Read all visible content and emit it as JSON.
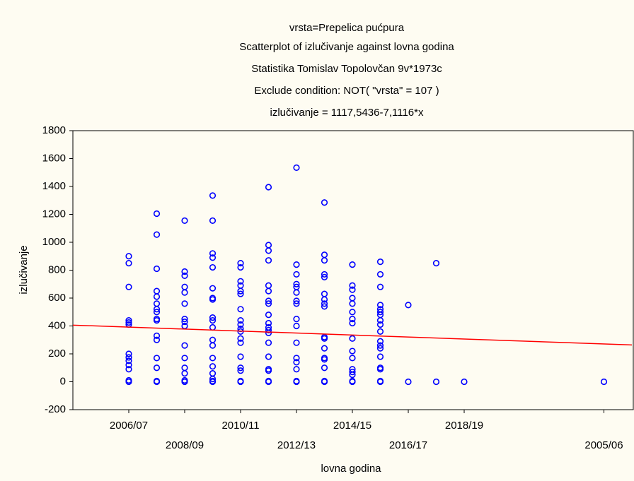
{
  "chart_data": {
    "type": "scatter",
    "title": "vrsta=Prepelica pućpura",
    "subtitles": [
      "Scatterplot of izlučivanje against lovna godina",
      "Statistika Tomislav Topolovčan 9v*1973c",
      "Exclude condition: NOT( \"vrsta\" = 107 )",
      "izlučivanje = 1117,5436-7,1116*x"
    ],
    "x_label": "lovna godina",
    "y_label": "izlučivanje",
    "xlim": [
      -2,
      18
    ],
    "ylim": [
      -200,
      1800
    ],
    "xticks": [
      {
        "value": 0,
        "label": "2006/07"
      },
      {
        "value": 2,
        "label": "2008/09"
      },
      {
        "value": 4,
        "label": "2010/11"
      },
      {
        "value": 6,
        "label": "2012/13"
      },
      {
        "value": 8,
        "label": "2014/15"
      },
      {
        "value": 10,
        "label": "2016/17"
      },
      {
        "value": 12,
        "label": "2018/19"
      },
      {
        "value": 17,
        "label": "2005/06"
      }
    ],
    "yticks": [
      -200,
      0,
      200,
      400,
      600,
      800,
      1000,
      1200,
      1400,
      1600,
      1800
    ],
    "series": [
      {
        "type": "scatter",
        "color": "#0000ff",
        "x": [
          0,
          0,
          0,
          0,
          0,
          0,
          0,
          0,
          0,
          0,
          0,
          0,
          0,
          1,
          1,
          1,
          1,
          1,
          1,
          1,
          1,
          1,
          1,
          1,
          1,
          1,
          1,
          1,
          1,
          2,
          2,
          2,
          2,
          2,
          2,
          2,
          2,
          2,
          2,
          2,
          2,
          2,
          2,
          2,
          3,
          3,
          3,
          3,
          3,
          3,
          3,
          3,
          3,
          3,
          3,
          3,
          3,
          3,
          3,
          3,
          3,
          3,
          3,
          4,
          4,
          4,
          4,
          4,
          4,
          4,
          4,
          4,
          4,
          4,
          4,
          4,
          4,
          4,
          4,
          4,
          4,
          5,
          5,
          5,
          5,
          5,
          5,
          5,
          5,
          5,
          5,
          5,
          5,
          5,
          5,
          5,
          5,
          5,
          5,
          5,
          6,
          6,
          6,
          6,
          6,
          6,
          6,
          6,
          6,
          6,
          6,
          6,
          6,
          6,
          6,
          6,
          7,
          7,
          7,
          7,
          7,
          7,
          7,
          7,
          7,
          7,
          7,
          7,
          7,
          7,
          7,
          7,
          7,
          8,
          8,
          8,
          8,
          8,
          8,
          8,
          8,
          8,
          8,
          8,
          8,
          8,
          8,
          8,
          8,
          9,
          9,
          9,
          9,
          9,
          9,
          9,
          9,
          9,
          9,
          9,
          9,
          9,
          9,
          9,
          9,
          9,
          9,
          10,
          10,
          11,
          11,
          12,
          17
        ],
        "values": [
          900,
          850,
          680,
          440,
          425,
          410,
          200,
          175,
          150,
          120,
          90,
          10,
          0,
          1205,
          1055,
          810,
          650,
          610,
          560,
          520,
          500,
          450,
          440,
          330,
          300,
          170,
          100,
          5,
          0,
          1155,
          790,
          760,
          680,
          640,
          560,
          450,
          430,
          400,
          260,
          170,
          100,
          60,
          10,
          0,
          1335,
          1155,
          920,
          890,
          820,
          670,
          600,
          590,
          460,
          440,
          390,
          300,
          260,
          170,
          110,
          60,
          20,
          5,
          0,
          850,
          820,
          720,
          690,
          650,
          630,
          520,
          440,
          410,
          380,
          360,
          310,
          280,
          180,
          100,
          80,
          5,
          0,
          1395,
          980,
          940,
          870,
          690,
          650,
          580,
          560,
          480,
          420,
          390,
          370,
          350,
          280,
          180,
          90,
          80,
          5,
          0,
          1535,
          840,
          770,
          700,
          680,
          640,
          580,
          560,
          450,
          400,
          280,
          170,
          140,
          90,
          5,
          0,
          1285,
          910,
          870,
          770,
          750,
          630,
          590,
          560,
          540,
          320,
          310,
          240,
          170,
          160,
          100,
          5,
          0,
          840,
          690,
          660,
          600,
          560,
          500,
          450,
          420,
          310,
          220,
          170,
          90,
          70,
          50,
          5,
          0,
          860,
          770,
          680,
          550,
          520,
          500,
          480,
          440,
          410,
          360,
          290,
          260,
          240,
          180,
          100,
          90,
          5,
          0,
          550,
          0,
          850,
          0,
          0,
          0
        ]
      },
      {
        "type": "line",
        "color": "#ff0000",
        "x": [
          -2,
          18
        ],
        "values": [
          406,
          264
        ]
      }
    ]
  }
}
